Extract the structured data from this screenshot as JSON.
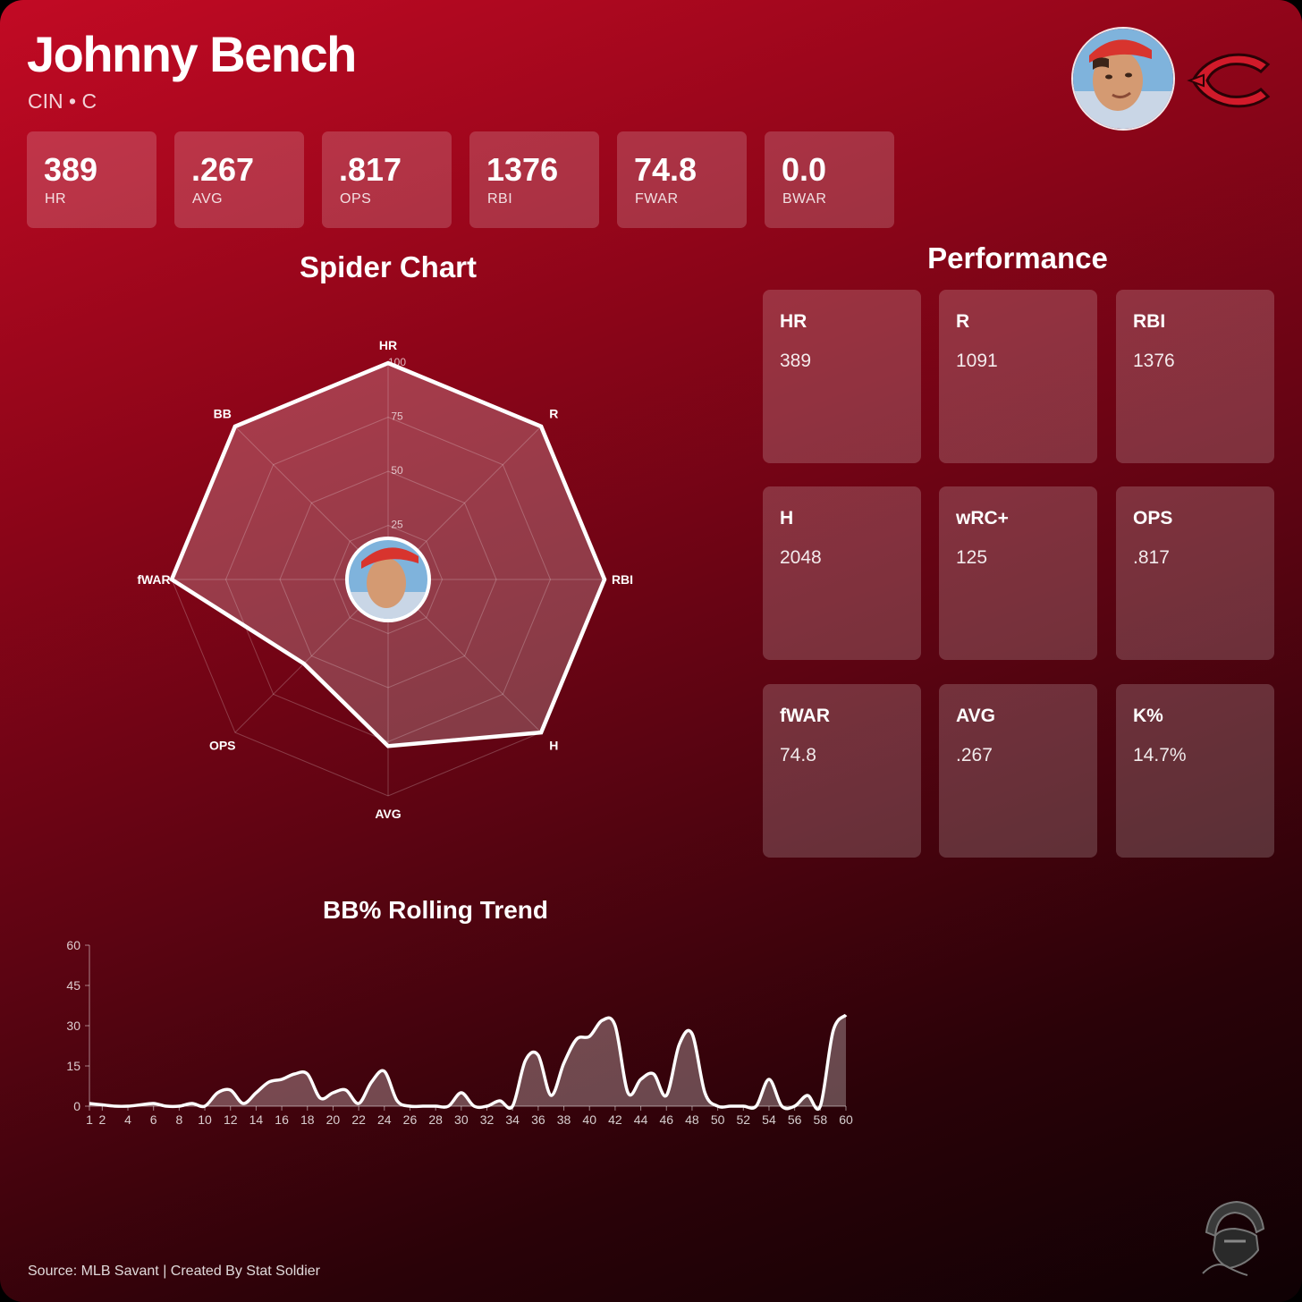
{
  "header": {
    "name": "Johnny Bench",
    "subtitle": "CIN • C"
  },
  "summary_stats": [
    {
      "value": "389",
      "label": "HR"
    },
    {
      "value": ".267",
      "label": "AVG"
    },
    {
      "value": ".817",
      "label": "OPS"
    },
    {
      "value": "1376",
      "label": "RBI"
    },
    {
      "value": "74.8",
      "label": "FWAR"
    },
    {
      "value": "0.0",
      "label": "BWAR"
    }
  ],
  "sections": {
    "spider_title": "Spider Chart",
    "performance_title": "Performance",
    "trend_title": "BB% Rolling Trend"
  },
  "performance": [
    {
      "label": "HR",
      "value": "389"
    },
    {
      "label": "R",
      "value": "1091"
    },
    {
      "label": "RBI",
      "value": "1376"
    },
    {
      "label": "H",
      "value": "2048"
    },
    {
      "label": "wRC+",
      "value": "125"
    },
    {
      "label": "OPS",
      "value": ".817"
    },
    {
      "label": "fWAR",
      "value": "74.8"
    },
    {
      "label": "AVG",
      "value": ".267"
    },
    {
      "label": "K%",
      "value": "14.7%"
    }
  ],
  "footer": {
    "source": "Source: MLB Savant | Created By Stat Soldier"
  },
  "colors": {
    "accent": "#c20a24",
    "dark": "#0f0104",
    "line": "#ffffff"
  },
  "icons": {
    "team_logo": "reds-c-logo",
    "mascot": "soldier-helmet-logo",
    "avatar": "player-portrait"
  },
  "chart_data": [
    {
      "type": "radar",
      "axes": [
        "HR",
        "R",
        "RBI",
        "H",
        "AVG",
        "OPS",
        "fWAR",
        "BB"
      ],
      "values": [
        100,
        100,
        100,
        100,
        77,
        55,
        100,
        100
      ],
      "rlim": [
        0,
        100
      ],
      "rticks": [
        25,
        50,
        75,
        100
      ],
      "grid": true
    },
    {
      "type": "area",
      "x": [
        1,
        2,
        3,
        4,
        5,
        6,
        7,
        8,
        9,
        10,
        11,
        12,
        13,
        14,
        15,
        16,
        17,
        18,
        19,
        20,
        21,
        22,
        23,
        24,
        25,
        26,
        27,
        28,
        29,
        30,
        31,
        32,
        33,
        34,
        35,
        36,
        37,
        38,
        39,
        40,
        41,
        42,
        43,
        44,
        45,
        46,
        47,
        48,
        49,
        50,
        51,
        52,
        53,
        54,
        55,
        56,
        57,
        58,
        59,
        60
      ],
      "values": [
        1,
        0.5,
        0,
        0,
        0.5,
        1,
        0,
        0,
        1,
        0,
        5,
        6,
        1,
        5,
        9,
        10,
        12,
        12,
        3,
        5,
        6,
        1,
        9,
        13,
        2,
        0,
        0,
        0,
        0,
        5,
        0,
        0,
        2,
        0,
        17,
        19,
        4,
        16,
        25,
        26,
        32,
        30,
        5,
        10,
        12,
        4,
        23,
        27,
        5,
        0,
        0,
        0,
        0,
        10,
        0,
        0,
        4,
        0,
        28,
        34
      ],
      "xticks": [
        1,
        2,
        4,
        6,
        8,
        10,
        12,
        14,
        16,
        18,
        20,
        22,
        24,
        26,
        28,
        30,
        32,
        34,
        36,
        38,
        40,
        42,
        44,
        46,
        48,
        50,
        52,
        54,
        56,
        58,
        60
      ],
      "ylim": [
        0,
        60
      ],
      "yticks": [
        0,
        15,
        30,
        45,
        60
      ]
    }
  ]
}
